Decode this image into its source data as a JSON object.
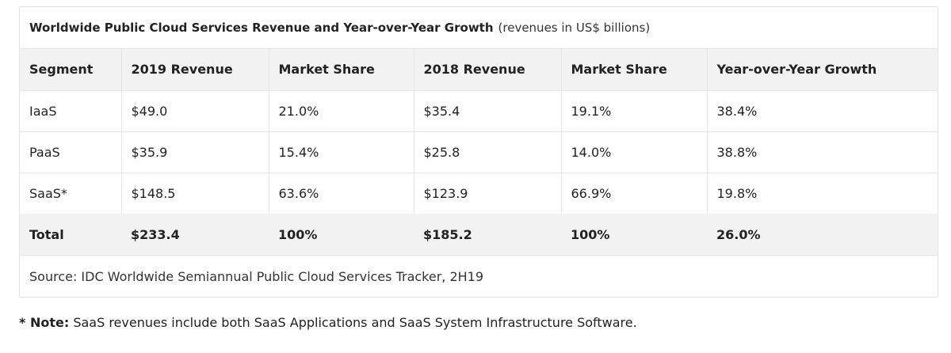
{
  "chart_data": {
    "type": "table",
    "title": "Worldwide Public Cloud Services Revenue and Year-over-Year Growth",
    "subtitle": "(revenues in US$ billions)",
    "columns": [
      "Segment",
      "2019 Revenue",
      "Market Share",
      "2018 Revenue",
      "Market Share",
      "Year-over-Year Growth"
    ],
    "rows": [
      [
        "IaaS",
        "$49.0",
        "21.0%",
        "$35.4",
        "19.1%",
        "38.4%"
      ],
      [
        "PaaS",
        "$35.9",
        "15.4%",
        "$25.8",
        "14.0%",
        "38.8%"
      ],
      [
        "SaaS*",
        "$148.5",
        "63.6%",
        "$123.9",
        "66.9%",
        "19.8%"
      ]
    ],
    "total": [
      "Total",
      "$233.4",
      "100%",
      "$185.2",
      "100%",
      "26.0%"
    ],
    "source": "Source: IDC Worldwide Semiannual Public Cloud Services Tracker, 2H19"
  },
  "note": {
    "label": "* Note:",
    "text": "SaaS revenues include both SaaS Applications and SaaS System Infrastructure Software."
  },
  "colors": {
    "header_bg": "#f2f2f2",
    "border": "#e6e6e6",
    "text": "#222222"
  }
}
